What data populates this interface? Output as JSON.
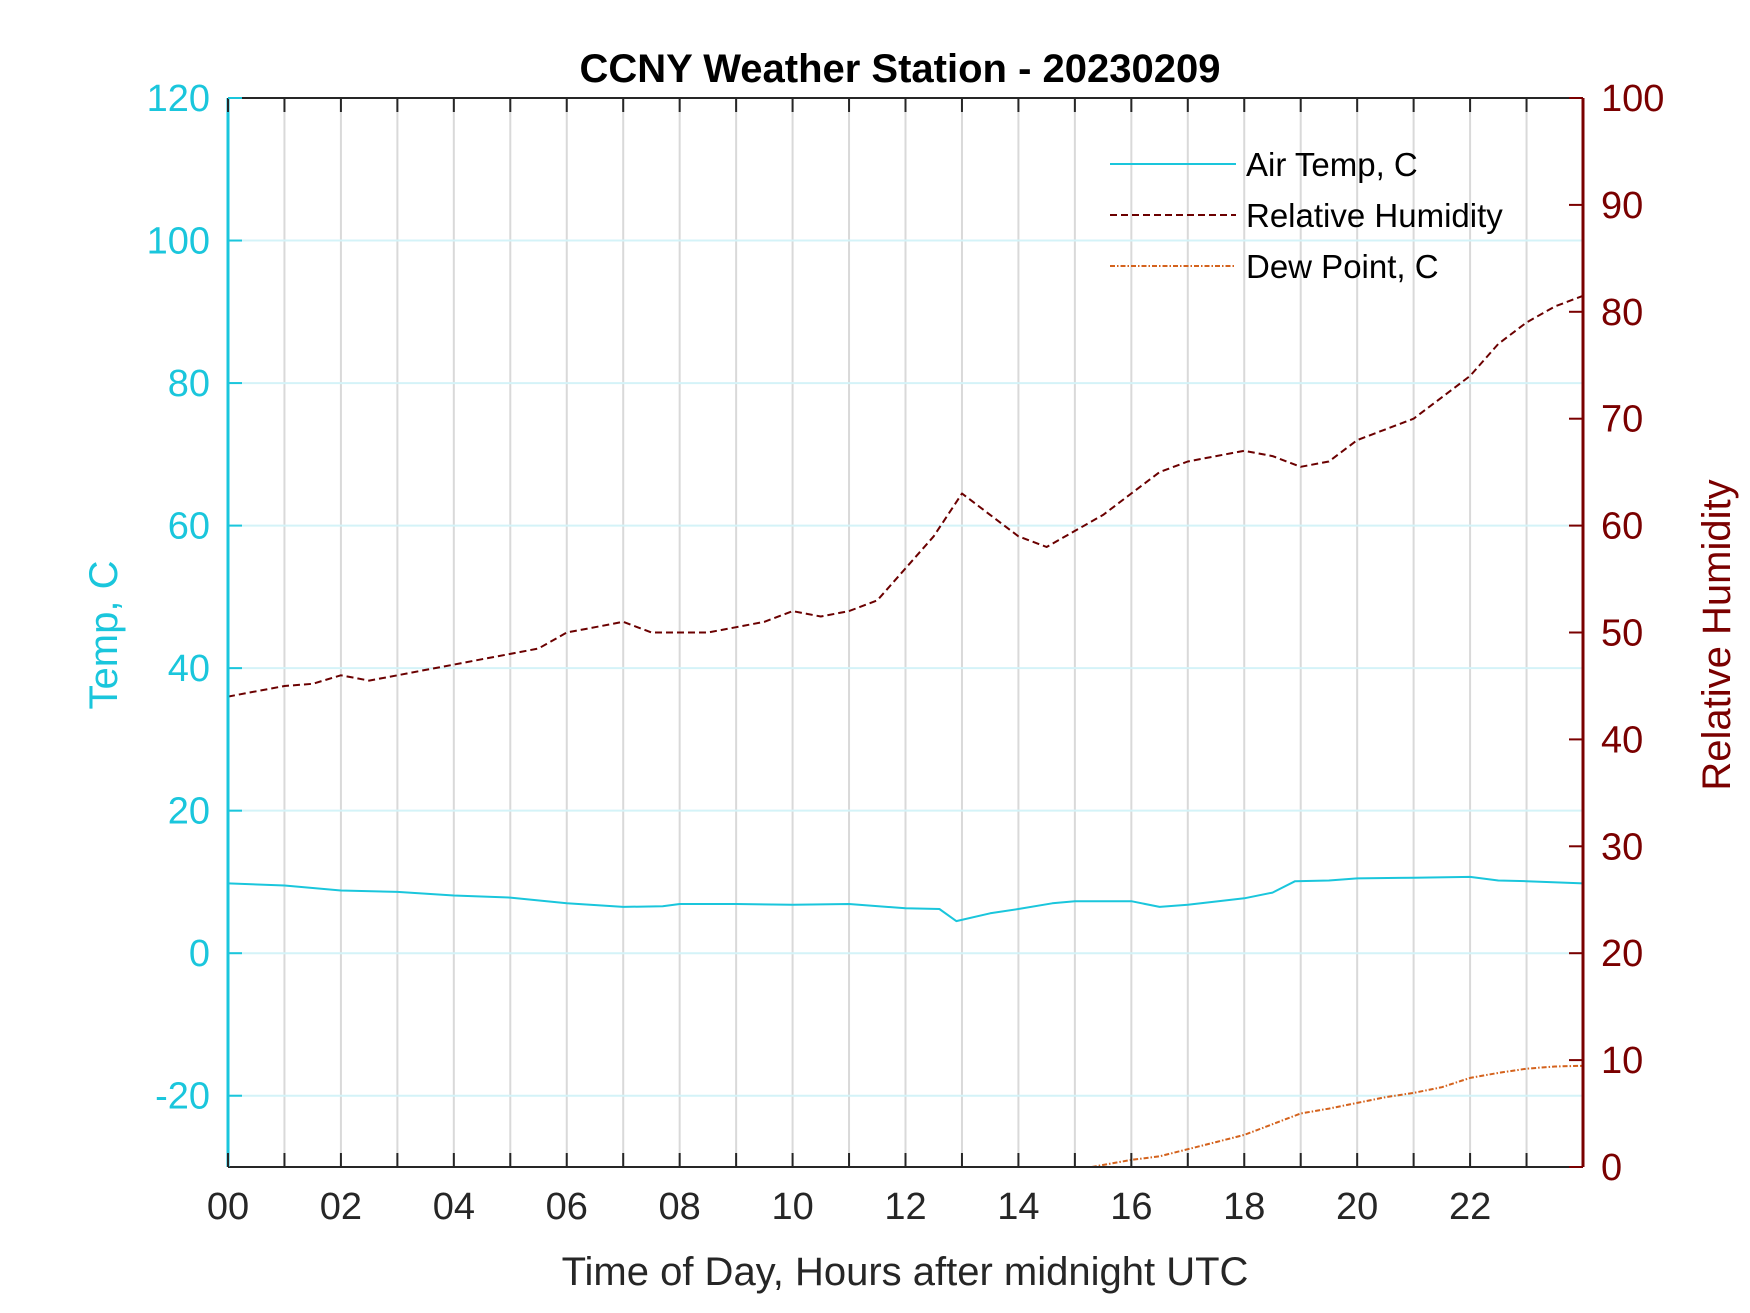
{
  "chart_data": {
    "type": "line",
    "title": "CCNY Weather Station - 20230209",
    "xlabel": "Time of Day, Hours after midnight UTC",
    "ylabel_left": "Temp, C",
    "ylabel_right": "Relative Humidity",
    "xlim": [
      0,
      24
    ],
    "ylim_left": [
      -30,
      120
    ],
    "ylim_right": [
      0,
      100
    ],
    "x_ticks": [
      "00",
      "02",
      "04",
      "06",
      "08",
      "10",
      "12",
      "14",
      "16",
      "18",
      "20",
      "22"
    ],
    "y_ticks_left": [
      120,
      100,
      80,
      60,
      40,
      20,
      0,
      -20
    ],
    "y_ticks_right": [
      100,
      90,
      80,
      70,
      60,
      50,
      40,
      30,
      20,
      10,
      0
    ],
    "grid": true,
    "legend_position": "top-right",
    "colors": {
      "left_axis": "#1ac6dc",
      "right_axis": "#7a0000",
      "air_temp": "#1ac6dc",
      "relative_humidity": "#6b0000",
      "dew_point": "#d4621c"
    },
    "series": [
      {
        "name": "Air Temp, C",
        "axis": "left",
        "style": "solid",
        "x": [
          0,
          1,
          2,
          3,
          4,
          5,
          6,
          7,
          7.7,
          8,
          9,
          10,
          11,
          12,
          12.6,
          12.9,
          13.5,
          14,
          14.6,
          15,
          16,
          16.5,
          17,
          18,
          18.5,
          18.9,
          19.5,
          20,
          21,
          22,
          22.5,
          23,
          24
        ],
        "values": [
          9.8,
          9.5,
          8.8,
          8.6,
          8.1,
          7.8,
          7.0,
          6.5,
          6.6,
          6.9,
          6.9,
          6.8,
          6.9,
          6.3,
          6.2,
          4.5,
          5.6,
          6.2,
          7.0,
          7.3,
          7.3,
          6.5,
          6.8,
          7.7,
          8.5,
          10.1,
          10.2,
          10.5,
          10.6,
          10.7,
          10.2,
          10.1,
          9.8
        ]
      },
      {
        "name": "Relative Humidity",
        "axis": "right",
        "style": "dashed",
        "x": [
          0,
          0.5,
          1,
          1.5,
          2,
          2.5,
          3,
          3.5,
          4,
          4.5,
          5,
          5.5,
          6,
          6.5,
          7,
          7.5,
          8,
          8.5,
          9,
          9.5,
          10,
          10.5,
          11,
          11.5,
          12,
          12.5,
          13,
          13.5,
          14,
          14.5,
          15,
          15.5,
          16,
          16.5,
          17,
          17.5,
          18,
          18.5,
          19,
          19.5,
          20,
          20.5,
          21,
          21.5,
          22,
          22.5,
          23,
          23.5,
          24
        ],
        "values": [
          44,
          44.5,
          45,
          45.2,
          46,
          45.5,
          46,
          46.5,
          47,
          47.5,
          48,
          48.5,
          50,
          50.5,
          51,
          50,
          50,
          50,
          50.5,
          51,
          52,
          51.5,
          52,
          53,
          56,
          59,
          63,
          61,
          59,
          58,
          59.5,
          61,
          63,
          65,
          66,
          66.5,
          67,
          66.5,
          65.5,
          66,
          68,
          69,
          70,
          72,
          74,
          77,
          79,
          80.5,
          81.5
        ]
      },
      {
        "name": "Dew Point, C",
        "axis": "left",
        "style": "dash-dot",
        "x": [
          15.3,
          16,
          16.5,
          17,
          17.5,
          18,
          18.5,
          19,
          19.5,
          20,
          20.5,
          21,
          21.5,
          22,
          22.5,
          23,
          23.5,
          24
        ],
        "values": [
          -30,
          -29,
          -28.5,
          -27.5,
          -26.5,
          -25.5,
          -24,
          -22.5,
          -21.8,
          -21,
          -20.2,
          -19.6,
          -18.8,
          -17.5,
          -16.8,
          -16.2,
          -15.9,
          -15.8
        ]
      }
    ]
  }
}
